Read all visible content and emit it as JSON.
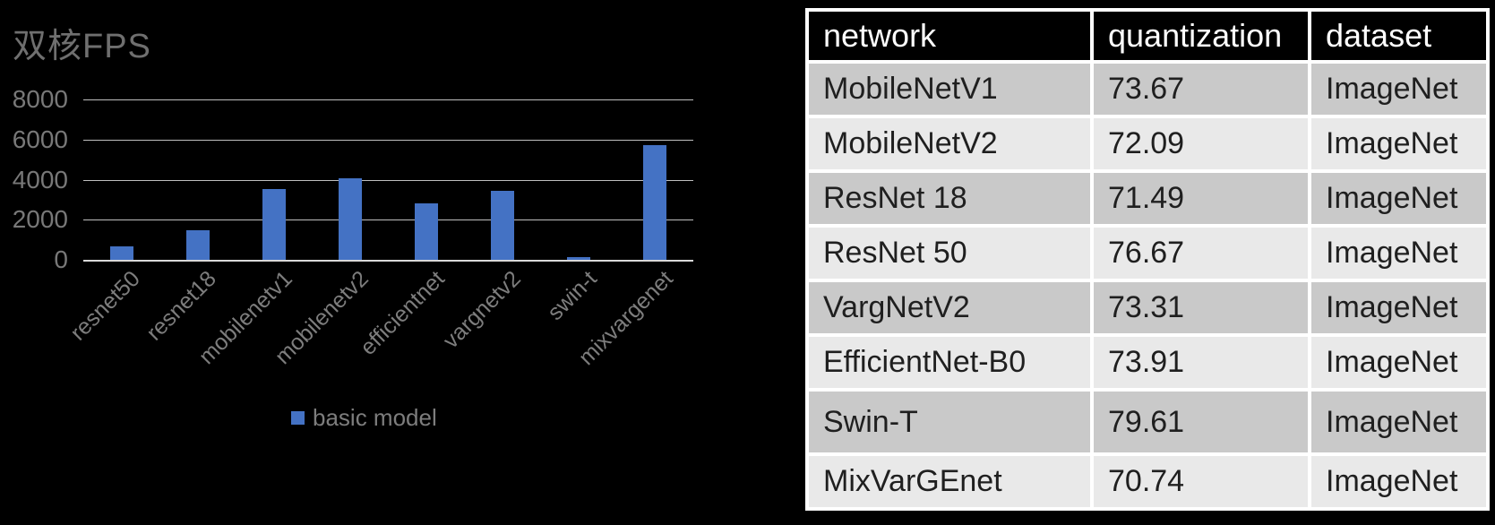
{
  "chart": {
    "title": "双核FPS",
    "legend_label": "basic model",
    "colors": {
      "bar": "#4472c4",
      "title_text": "#6f6f6f",
      "axis_text": "#7d7d7d",
      "gridline": "#bfbfbf",
      "axis_line": "#d9d9d9"
    }
  },
  "chart_data": {
    "type": "bar",
    "title": "双核FPS",
    "categories": [
      "resnet50",
      "resnet18",
      "mobilenetv1",
      "mobilenetv2",
      "efficientnet",
      "vargnetv2",
      "swin-t",
      "mixvargenet"
    ],
    "series": [
      {
        "name": "basic model",
        "values": [
          670,
          1480,
          3540,
          4060,
          2800,
          3450,
          120,
          5710
        ]
      }
    ],
    "xlabel": "",
    "ylabel": "",
    "ylim": [
      0,
      8000
    ],
    "yticks": [
      0,
      2000,
      4000,
      6000,
      8000
    ],
    "grid": true,
    "legend_position": "bottom"
  },
  "table": {
    "columns": [
      "network",
      "quantization",
      "dataset"
    ],
    "rows": [
      {
        "network": "MobileNetV1",
        "quantization": "73.67",
        "dataset": "ImageNet"
      },
      {
        "network": "MobileNetV2",
        "quantization": "72.09",
        "dataset": "ImageNet"
      },
      {
        "network": "ResNet 18",
        "quantization": "71.49",
        "dataset": "ImageNet"
      },
      {
        "network": "ResNet 50",
        "quantization": "76.67",
        "dataset": "ImageNet"
      },
      {
        "network": "VargNetV2",
        "quantization": "73.31",
        "dataset": "ImageNet"
      },
      {
        "network": "EfficientNet-B0",
        "quantization": "73.91",
        "dataset": "ImageNet"
      },
      {
        "network": "Swin-T",
        "quantization": "79.61",
        "dataset": "ImageNet"
      },
      {
        "network": "MixVarGEnet",
        "quantization": "70.74",
        "dataset": "ImageNet"
      }
    ]
  }
}
